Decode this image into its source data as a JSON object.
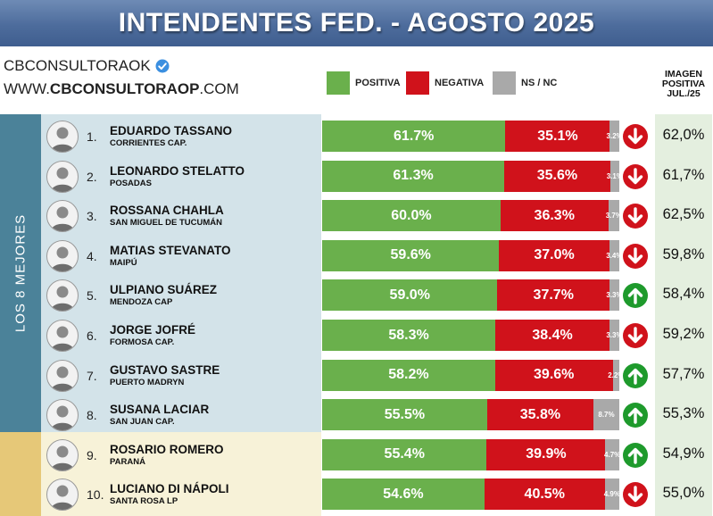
{
  "header": {
    "title": "INTENDENTES FED. - AGOSTO 2025"
  },
  "brand": {
    "name": "CBCONSULTORAOK",
    "url_prefix": "WWW.",
    "url_bold": "CBCONSULTORAOP",
    "url_suffix": ".COM"
  },
  "legend": {
    "positive": "POSITIVA",
    "negative": "NEGATIVA",
    "nsnc": "NS / NC"
  },
  "prev_header": [
    "IMAGEN",
    "POSITIVA",
    "JUL./25"
  ],
  "side_label": "LOS 8 MEJORES",
  "colors": {
    "positive": "#6ab04c",
    "negative": "#d0121b",
    "nsnc": "#a9a9a9",
    "arrow_up": "#1e9a2c",
    "arrow_down": "#d0121b"
  },
  "chart_data": {
    "type": "bar",
    "stacked": true,
    "orientation": "horizontal",
    "title": "INTENDENTES FED. - AGOSTO 2025",
    "categories": [
      "EDUARDO TASSANO",
      "LEONARDO STELATTO",
      "ROSSANA CHAHLA",
      "MATIAS STEVANATO",
      "ULPIANO SUÁREZ",
      "JORGE JOFRÉ",
      "GUSTAVO SASTRE",
      "SUSANA LACIAR",
      "ROSARIO ROMERO",
      "LUCIANO DI NÁPOLI"
    ],
    "series": [
      {
        "name": "POSITIVA",
        "values": [
          61.7,
          61.3,
          60.0,
          59.6,
          59.0,
          58.3,
          58.2,
          55.5,
          55.4,
          54.6
        ]
      },
      {
        "name": "NEGATIVA",
        "values": [
          35.1,
          35.6,
          36.3,
          37.0,
          37.7,
          38.4,
          39.6,
          35.8,
          39.9,
          40.5
        ]
      },
      {
        "name": "NS / NC",
        "values": [
          3.2,
          3.1,
          3.7,
          3.4,
          3.3,
          3.3,
          2.2,
          8.7,
          4.7,
          4.9
        ]
      }
    ],
    "rows": [
      {
        "rank": "1.",
        "name": "EDUARDO TASSANO",
        "city": "CORRIENTES CAP.",
        "pos": 61.7,
        "neg": 35.1,
        "ns": 3.2,
        "pos_label": "61.7%",
        "neg_label": "35.1%",
        "ns_label": "3.2%",
        "trend": "down",
        "prev": "62,0%"
      },
      {
        "rank": "2.",
        "name": "LEONARDO STELATTO",
        "city": "POSADAS",
        "pos": 61.3,
        "neg": 35.6,
        "ns": 3.1,
        "pos_label": "61.3%",
        "neg_label": "35.6%",
        "ns_label": "3.1%",
        "trend": "down",
        "prev": "61,7%"
      },
      {
        "rank": "3.",
        "name": "ROSSANA CHAHLA",
        "city": "SAN MIGUEL DE TUCUMÁN",
        "pos": 60.0,
        "neg": 36.3,
        "ns": 3.7,
        "pos_label": "60.0%",
        "neg_label": "36.3%",
        "ns_label": "3.7%",
        "trend": "down",
        "prev": "62,5%"
      },
      {
        "rank": "4.",
        "name": "MATIAS STEVANATO",
        "city": "MAIPÚ",
        "pos": 59.6,
        "neg": 37.0,
        "ns": 3.4,
        "pos_label": "59.6%",
        "neg_label": "37.0%",
        "ns_label": "3.4%",
        "trend": "down",
        "prev": "59,8%"
      },
      {
        "rank": "5.",
        "name": "ULPIANO SUÁREZ",
        "city": "MENDOZA CAP",
        "pos": 59.0,
        "neg": 37.7,
        "ns": 3.3,
        "pos_label": "59.0%",
        "neg_label": "37.7%",
        "ns_label": "3.3%",
        "trend": "up",
        "prev": "58,4%"
      },
      {
        "rank": "6.",
        "name": "JORGE JOFRÉ",
        "city": "FORMOSA CAP.",
        "pos": 58.3,
        "neg": 38.4,
        "ns": 3.3,
        "pos_label": "58.3%",
        "neg_label": "38.4%",
        "ns_label": "3.3%",
        "trend": "down",
        "prev": "59,2%"
      },
      {
        "rank": "7.",
        "name": "GUSTAVO SASTRE",
        "city": "PUERTO MADRYN",
        "pos": 58.2,
        "neg": 39.6,
        "ns": 2.2,
        "pos_label": "58.2%",
        "neg_label": "39.6%",
        "ns_label": "2.2%",
        "trend": "up",
        "prev": "57,7%"
      },
      {
        "rank": "8.",
        "name": "SUSANA LACIAR",
        "city": "SAN JUAN CAP.",
        "pos": 55.5,
        "neg": 35.8,
        "ns": 8.7,
        "pos_label": "55.5%",
        "neg_label": "35.8%",
        "ns_label": "8.7%",
        "trend": "up",
        "prev": "55,3%"
      },
      {
        "rank": "9.",
        "name": "ROSARIO ROMERO",
        "city": "PARANÁ",
        "pos": 55.4,
        "neg": 39.9,
        "ns": 4.7,
        "pos_label": "55.4%",
        "neg_label": "39.9%",
        "ns_label": "4.7%",
        "trend": "up",
        "prev": "54,9%"
      },
      {
        "rank": "10.",
        "name": "LUCIANO DI NÁPOLI",
        "city": "SANTA ROSA LP",
        "pos": 54.6,
        "neg": 40.5,
        "ns": 4.9,
        "pos_label": "54.6%",
        "neg_label": "40.5%",
        "ns_label": "4.9%",
        "trend": "down",
        "prev": "55,0%"
      }
    ]
  }
}
